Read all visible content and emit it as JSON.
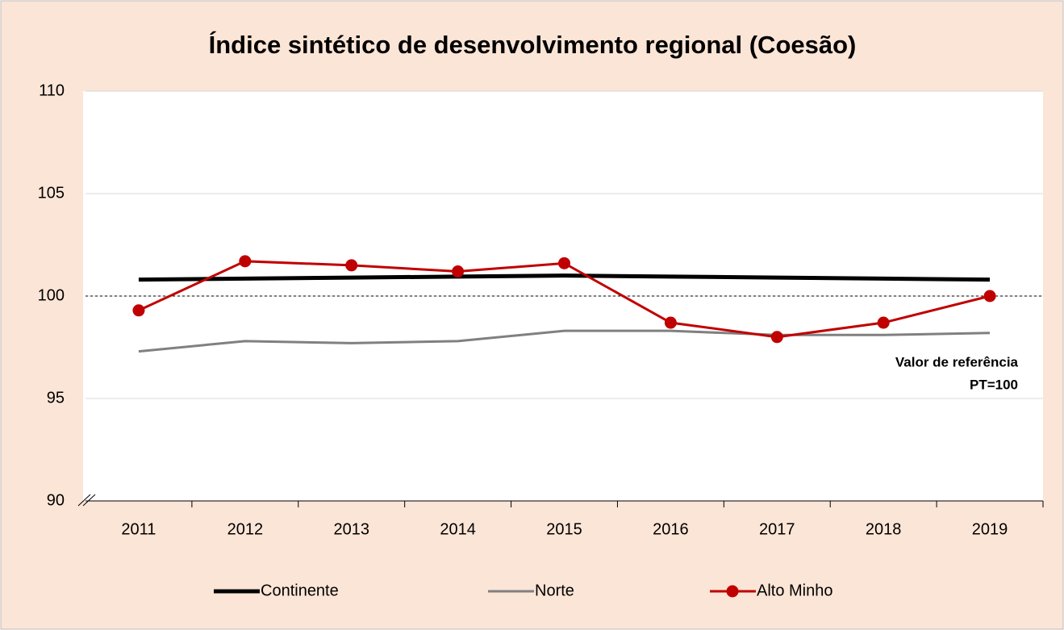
{
  "chart_data": {
    "type": "line",
    "title": "Índice sintético de desenvolvimento regional (Coesão)",
    "categories": [
      "2011",
      "2012",
      "2013",
      "2014",
      "2015",
      "2016",
      "2017",
      "2018",
      "2019"
    ],
    "series": [
      {
        "name": "Continente",
        "color": "#000000",
        "values": [
          100.8,
          100.85,
          100.9,
          100.95,
          101.0,
          100.95,
          100.9,
          100.85,
          100.8
        ]
      },
      {
        "name": "Norte",
        "color": "#808080",
        "values": [
          97.3,
          97.8,
          97.7,
          97.8,
          98.3,
          98.3,
          98.1,
          98.1,
          98.2
        ]
      },
      {
        "name": "Alto Minho",
        "color": "#c00000",
        "values": [
          99.3,
          101.7,
          101.5,
          101.2,
          101.6,
          98.7,
          98.0,
          98.7,
          100.0
        ]
      }
    ],
    "ylim": [
      90,
      110
    ],
    "yticks": [
      90,
      95,
      100,
      105,
      110
    ],
    "grid": true,
    "reference_line": 100,
    "annotation": [
      "Valor de referência",
      "PT=100"
    ],
    "legend": "bottom"
  }
}
